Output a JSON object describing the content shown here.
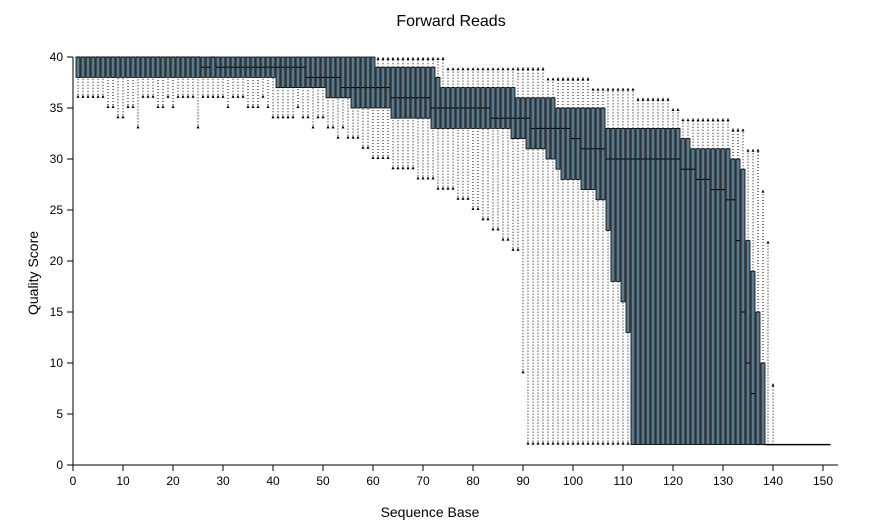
{
  "chart_data": {
    "type": "boxplot",
    "title": "Forward Reads",
    "xlabel": "Sequence Base",
    "ylabel": "Quality Score",
    "xlim": [
      0,
      152
    ],
    "ylim": [
      0,
      40
    ],
    "xticks": [
      0,
      10,
      20,
      30,
      40,
      50,
      60,
      70,
      80,
      90,
      100,
      110,
      120,
      130,
      140,
      150
    ],
    "yticks": [
      0,
      5,
      10,
      15,
      20,
      25,
      30,
      35,
      40
    ],
    "grid": false,
    "box_color": "#5b7a8c",
    "whisker_style": "dotted",
    "positions_start": 1,
    "positions_end": 152,
    "q1": [
      38,
      38,
      38,
      38,
      38,
      38,
      38,
      38,
      38,
      38,
      38,
      38,
      38,
      38,
      38,
      38,
      38,
      38,
      38,
      38,
      38,
      38,
      38,
      38,
      38,
      38,
      38,
      38,
      38,
      38,
      38,
      38,
      38,
      38,
      38,
      38,
      38,
      38,
      38,
      38,
      37,
      37,
      37,
      37,
      37,
      37,
      37,
      37,
      37,
      37,
      36,
      36,
      36,
      36,
      36,
      35,
      35,
      35,
      35,
      35,
      35,
      35,
      35,
      34,
      34,
      34,
      34,
      34,
      34,
      34,
      34,
      33,
      33,
      33,
      33,
      33,
      33,
      33,
      33,
      33,
      33,
      33,
      33,
      33,
      33,
      33,
      33,
      32,
      32,
      32,
      31,
      31,
      31,
      31,
      30,
      30,
      29,
      28,
      28,
      28,
      28,
      27,
      27,
      27,
      26,
      26,
      23,
      18,
      18,
      16,
      13,
      2,
      2,
      2,
      2,
      2,
      2,
      2,
      2,
      2,
      2,
      2,
      2,
      2,
      2,
      2,
      2,
      2,
      2,
      2,
      2,
      2,
      2,
      2,
      2,
      2,
      2,
      2,
      2,
      2,
      2,
      2,
      2,
      2,
      2,
      2,
      2,
      2,
      2,
      2,
      2
    ],
    "q3": [
      40,
      40,
      40,
      40,
      40,
      40,
      40,
      40,
      40,
      40,
      40,
      40,
      40,
      40,
      40,
      40,
      40,
      40,
      40,
      40,
      40,
      40,
      40,
      40,
      40,
      40,
      40,
      40,
      40,
      40,
      40,
      40,
      40,
      40,
      40,
      40,
      40,
      40,
      40,
      40,
      40,
      40,
      40,
      40,
      40,
      40,
      40,
      40,
      40,
      40,
      40,
      40,
      40,
      40,
      40,
      40,
      40,
      40,
      40,
      40,
      39,
      39,
      39,
      39,
      39,
      39,
      39,
      39,
      39,
      39,
      39,
      39,
      38,
      37,
      37,
      37,
      37,
      37,
      37,
      37,
      37,
      37,
      37,
      37,
      37,
      37,
      37,
      37,
      36,
      36,
      36,
      36,
      36,
      36,
      36,
      36,
      35,
      35,
      35,
      35,
      35,
      35,
      35,
      35,
      35,
      35,
      33,
      33,
      33,
      33,
      33,
      33,
      33,
      33,
      33,
      33,
      33,
      33,
      33,
      33,
      33,
      32,
      32,
      31,
      31,
      31,
      31,
      31,
      31,
      31,
      31,
      30,
      30,
      29,
      22,
      19,
      15,
      10,
      2,
      2,
      2,
      2,
      2,
      2,
      2,
      2,
      2,
      2,
      2,
      2,
      2,
      2
    ],
    "median": [
      40,
      40,
      40,
      40,
      40,
      40,
      40,
      40,
      40,
      40,
      40,
      40,
      40,
      40,
      40,
      40,
      40,
      40,
      40,
      40,
      40,
      40,
      40,
      40,
      40,
      39,
      39,
      40,
      39,
      39,
      39,
      39,
      39,
      39,
      39,
      39,
      39,
      39,
      39,
      39,
      39,
      39,
      39,
      39,
      39,
      39,
      38,
      38,
      38,
      38,
      38,
      38,
      38,
      37,
      37,
      37,
      37,
      37,
      37,
      37,
      37,
      37,
      37,
      36,
      36,
      36,
      36,
      36,
      36,
      36,
      36,
      35,
      35,
      35,
      35,
      35,
      35,
      35,
      35,
      35,
      35,
      35,
      35,
      34,
      34,
      34,
      34,
      34,
      34,
      34,
      34,
      33,
      33,
      33,
      33,
      33,
      33,
      33,
      33,
      32,
      32,
      31,
      31,
      31,
      31,
      31,
      30,
      30,
      30,
      30,
      30,
      30,
      30,
      30,
      30,
      30,
      30,
      30,
      30,
      30,
      30,
      29,
      29,
      29,
      28,
      28,
      28,
      27,
      27,
      27,
      26,
      26,
      22,
      15,
      10,
      7,
      2,
      2,
      2,
      2,
      2,
      2,
      2,
      2,
      2,
      2,
      2,
      2,
      2,
      2,
      2,
      2
    ],
    "whisker_low": [
      36,
      36,
      36,
      36,
      36,
      36,
      35,
      35,
      34,
      34,
      35,
      35,
      33,
      36,
      36,
      36,
      35,
      35,
      36,
      35,
      36,
      36,
      36,
      36,
      33,
      36,
      36,
      36,
      36,
      36,
      35,
      36,
      36,
      36,
      35,
      35,
      35,
      36,
      35,
      34,
      34,
      34,
      34,
      34,
      35,
      34,
      34,
      33,
      34,
      34,
      33,
      33,
      32,
      33,
      32,
      32,
      32,
      31,
      31,
      30,
      30,
      30,
      30,
      29,
      29,
      29,
      29,
      29,
      28,
      28,
      28,
      28,
      27,
      27,
      27,
      27,
      26,
      26,
      26,
      25,
      25,
      24,
      24,
      23,
      23,
      22,
      22,
      21,
      21,
      9,
      2,
      2,
      2,
      2,
      2,
      2,
      2,
      2,
      2,
      2,
      2,
      2,
      2,
      2,
      2,
      2,
      2,
      2,
      2,
      2,
      2,
      2,
      2,
      2,
      2,
      2,
      2,
      2,
      2,
      2,
      2,
      2,
      2,
      2,
      2,
      2,
      2,
      2,
      2,
      2,
      2,
      2,
      2,
      2,
      2,
      2,
      2,
      2,
      2,
      2,
      2,
      2,
      2,
      2,
      2,
      2,
      2,
      2,
      2,
      2,
      2,
      2
    ],
    "whisker_high": [
      40,
      40,
      40,
      40,
      40,
      40,
      40,
      40,
      40,
      40,
      40,
      40,
      40,
      40,
      40,
      40,
      40,
      40,
      40,
      40,
      40,
      40,
      40,
      40,
      40,
      40,
      40,
      40,
      40,
      40,
      40,
      40,
      40,
      40,
      40,
      40,
      40,
      40,
      40,
      40,
      40,
      40,
      40,
      40,
      40,
      40,
      40,
      40,
      40,
      40,
      40,
      40,
      40,
      40,
      40,
      40,
      40,
      40,
      40,
      40,
      40,
      40,
      40,
      40,
      40,
      40,
      40,
      40,
      40,
      40,
      40,
      40,
      40,
      40,
      39,
      39,
      39,
      39,
      39,
      39,
      39,
      39,
      39,
      39,
      39,
      39,
      39,
      39,
      39,
      39,
      39,
      39,
      39,
      39,
      38,
      38,
      38,
      38,
      38,
      38,
      38,
      38,
      38,
      37,
      37,
      37,
      37,
      37,
      37,
      37,
      37,
      37,
      36,
      36,
      36,
      36,
      36,
      36,
      36,
      35,
      35,
      34,
      34,
      34,
      34,
      34,
      34,
      34,
      34,
      34,
      34,
      33,
      33,
      33,
      31,
      31,
      31,
      27,
      22,
      8,
      2,
      2,
      2,
      2,
      2,
      2,
      2,
      2,
      2,
      2,
      2,
      2
    ]
  }
}
